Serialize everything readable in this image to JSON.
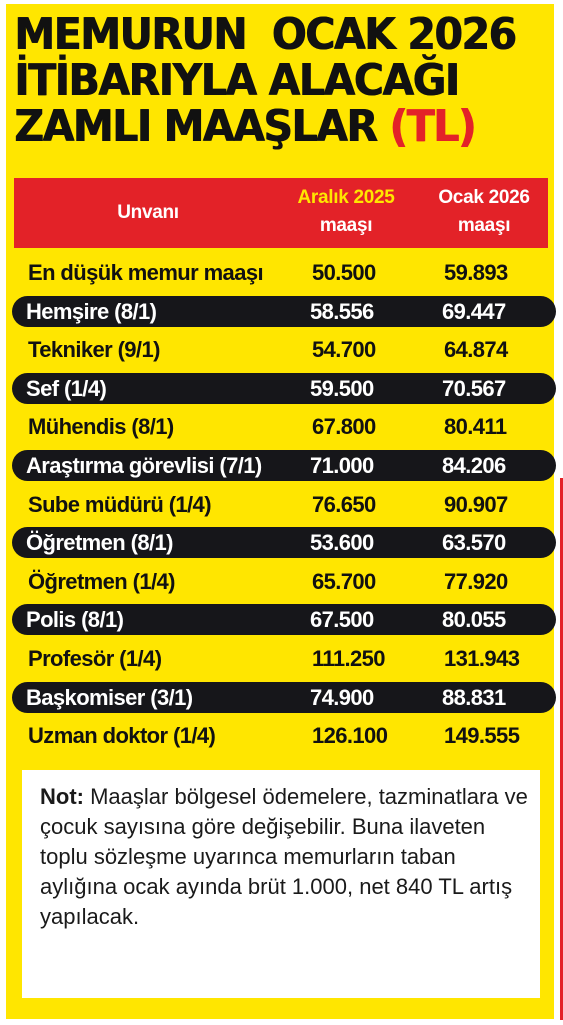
{
  "title": {
    "line1": "MEMURUN  OCAK 2026",
    "line2": "İTİBARIYLA ALACAĞI",
    "line3_prefix": "ZAMLI MAAŞLAR ",
    "line3_unit": "(TL)"
  },
  "table": {
    "headers": {
      "unvan": "Unvanı",
      "col1_line1": "Aralık 2025",
      "col1_line2": "maaşı",
      "col2_line1": "Ocak 2026",
      "col2_line2": "maaşı"
    },
    "rows": [
      {
        "name": "En düşük memur maaşı",
        "aralik_2025": "50.500",
        "ocak_2026": "59.893"
      },
      {
        "name": "Hemşire (8/1)",
        "aralik_2025": "58.556",
        "ocak_2026": "69.447"
      },
      {
        "name": "Tekniker (9/1)",
        "aralik_2025": "54.700",
        "ocak_2026": "64.874"
      },
      {
        "name": "Sef (1/4)",
        "aralik_2025": "59.500",
        "ocak_2026": "70.567"
      },
      {
        "name": "Mühendis (8/1)",
        "aralik_2025": "67.800",
        "ocak_2026": "80.411"
      },
      {
        "name": "Araştırma görevlisi (7/1)",
        "aralik_2025": "71.000",
        "ocak_2026": "84.206"
      },
      {
        "name": "Sube müdürü (1/4)",
        "aralik_2025": "76.650",
        "ocak_2026": "90.907"
      },
      {
        "name": "Öğretmen (8/1)",
        "aralik_2025": "53.600",
        "ocak_2026": "63.570"
      },
      {
        "name": "Öğretmen (1/4)",
        "aralik_2025": "65.700",
        "ocak_2026": "77.920"
      },
      {
        "name": "Polis (8/1)",
        "aralik_2025": "67.500",
        "ocak_2026": "80.055"
      },
      {
        "name": "Profesör (1/4)",
        "aralik_2025": "111.250",
        "ocak_2026": "131.943"
      },
      {
        "name": "Başkomiser (3/1)",
        "aralik_2025": "74.900",
        "ocak_2026": "88.831"
      },
      {
        "name": "Uzman doktor (1/4)",
        "aralik_2025": "126.100",
        "ocak_2026": "149.555"
      }
    ]
  },
  "note": {
    "label": "Not:",
    "text": " Maaşlar bölgesel ödemelere, tazminatlara ve çocuk sayısına göre değişebilir. Buna ilaveten toplu sözleşme uyarınca memurların taban aylığına ocak ayında brüt 1.000, net 840 TL artış yapılacak."
  },
  "colors": {
    "background": "#ffe600",
    "header_red": "#e32228",
    "dark_row": "#16161a",
    "text": "#111111"
  }
}
